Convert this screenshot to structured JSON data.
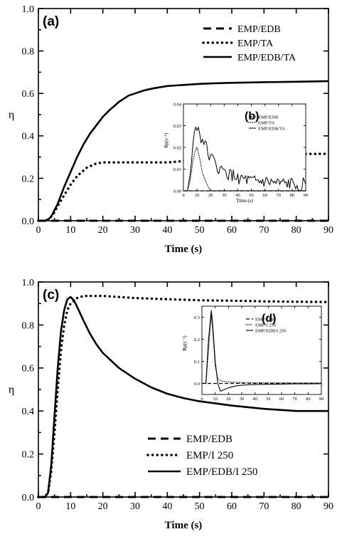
{
  "chart_data": [
    {
      "panel_label": "(a)",
      "type": "line",
      "xlabel": "Time (s)",
      "ylabel": "η",
      "xlim": [
        0,
        90
      ],
      "ylim": [
        0,
        1.0
      ],
      "xticks": [
        "0",
        "10",
        "20",
        "30",
        "40",
        "50",
        "60",
        "70",
        "80",
        "90"
      ],
      "yticks": [
        "0.0",
        "0.2",
        "0.4",
        "0.6",
        "0.8",
        "1.0"
      ],
      "legend_position": "top-right",
      "series": [
        {
          "name": "EMP/EDB",
          "style": "dashed-thick",
          "points": [
            [
              0,
              0
            ],
            [
              90,
              0
            ]
          ]
        },
        {
          "name": "EMP/TA",
          "style": "dotted-thick",
          "points": [
            [
              0,
              0
            ],
            [
              2,
              0
            ],
            [
              3.5,
              0.01
            ],
            [
              5,
              0.04
            ],
            [
              6,
              0.07
            ],
            [
              8,
              0.12
            ],
            [
              10,
              0.17
            ],
            [
              12,
              0.21
            ],
            [
              15,
              0.25
            ],
            [
              18,
              0.27
            ],
            [
              20,
              0.275
            ],
            [
              25,
              0.275
            ],
            [
              30,
              0.275
            ],
            [
              35,
              0.275
            ],
            [
              40,
              0.275
            ],
            [
              44,
              0.28
            ],
            [
              48,
              0.29
            ],
            [
              52,
              0.3
            ],
            [
              55,
              0.305
            ],
            [
              60,
              0.31
            ],
            [
              70,
              0.315
            ],
            [
              80,
              0.315
            ],
            [
              90,
              0.315
            ]
          ]
        },
        {
          "name": "EMP/EDB/TA",
          "style": "solid-thick",
          "points": [
            [
              0,
              0
            ],
            [
              2,
              0
            ],
            [
              3,
              0.005
            ],
            [
              4,
              0.02
            ],
            [
              5,
              0.05
            ],
            [
              6,
              0.08
            ],
            [
              7,
              0.12
            ],
            [
              8,
              0.16
            ],
            [
              10,
              0.23
            ],
            [
              12,
              0.3
            ],
            [
              14,
              0.36
            ],
            [
              16,
              0.41
            ],
            [
              18,
              0.45
            ],
            [
              20,
              0.49
            ],
            [
              22,
              0.52
            ],
            [
              25,
              0.56
            ],
            [
              28,
              0.59
            ],
            [
              30,
              0.6
            ],
            [
              33,
              0.615
            ],
            [
              36,
              0.625
            ],
            [
              40,
              0.635
            ],
            [
              45,
              0.64
            ],
            [
              50,
              0.645
            ],
            [
              55,
              0.648
            ],
            [
              60,
              0.65
            ],
            [
              70,
              0.653
            ],
            [
              80,
              0.655
            ],
            [
              90,
              0.658
            ]
          ]
        }
      ],
      "inset": {
        "panel_label": "(b)",
        "xlabel": "Time (s)",
        "ylabel": "Rp(s⁻¹)",
        "xlim": [
          0,
          90
        ],
        "ylim": [
          0,
          0.04
        ],
        "xticks": [
          "0",
          "10",
          "20",
          "30",
          "40",
          "50",
          "60",
          "70",
          "80",
          "90"
        ],
        "yticks": [
          "0.00",
          "0.01",
          "0.02",
          "0.03",
          "0.04"
        ],
        "legend": [
          "EMP/EDB",
          "EMP/TA",
          "EMP/EDB/TA"
        ],
        "series": [
          {
            "name": "EMP/EDB",
            "style": "dashed",
            "points": [
              [
                0,
                0
              ],
              [
                90,
                0
              ]
            ]
          },
          {
            "name": "EMP/TA",
            "style": "dotted",
            "points": [
              [
                0,
                0
              ],
              [
                3,
                0
              ],
              [
                5,
                0.005
              ],
              [
                7,
                0.014
              ],
              [
                9,
                0.019
              ],
              [
                10,
                0.02
              ],
              [
                12,
                0.015
              ],
              [
                14,
                0.008
              ],
              [
                16,
                0.005
              ],
              [
                18,
                0.002
              ],
              [
                20,
                0
              ],
              [
                90,
                0
              ]
            ]
          },
          {
            "name": "EMP/EDB/TA",
            "style": "solid-noisy",
            "points": [
              [
                0,
                0
              ],
              [
                3,
                0
              ],
              [
                5,
                0.008
              ],
              [
                7,
                0.02
              ],
              [
                8,
                0.028
              ],
              [
                10,
                0.03
              ],
              [
                12,
                0.026
              ],
              [
                14,
                0.024
              ],
              [
                16,
                0.021
              ],
              [
                18,
                0.018
              ],
              [
                20,
                0.016
              ],
              [
                22,
                0.013
              ],
              [
                25,
                0.011
              ],
              [
                28,
                0.009
              ],
              [
                32,
                0.008
              ],
              [
                35,
                0.007
              ],
              [
                40,
                0.006
              ],
              [
                45,
                0.005
              ],
              [
                50,
                0.004
              ],
              [
                55,
                0.004
              ],
              [
                60,
                0.004
              ],
              [
                70,
                0.003
              ],
              [
                80,
                0.003
              ],
              [
                90,
                0.003
              ]
            ]
          }
        ]
      }
    },
    {
      "panel_label": "(c)",
      "type": "line",
      "xlabel": "Time (s)",
      "ylabel": "η",
      "xlim": [
        0,
        90
      ],
      "ylim": [
        0,
        1.0
      ],
      "xticks": [
        "0",
        "10",
        "20",
        "30",
        "40",
        "50",
        "60",
        "70",
        "80",
        "90"
      ],
      "yticks": [
        "0.0",
        "0.2",
        "0.4",
        "0.6",
        "0.8",
        "1.0"
      ],
      "legend_position": "bottom-center",
      "series": [
        {
          "name": "EMP/EDB",
          "style": "dashed-thick",
          "points": [
            [
              0,
              0
            ],
            [
              90,
              0
            ]
          ]
        },
        {
          "name": "EMP/I 250",
          "style": "dotted-thick",
          "points": [
            [
              0,
              0
            ],
            [
              2,
              0
            ],
            [
              3,
              0.02
            ],
            [
              4,
              0.12
            ],
            [
              5,
              0.3
            ],
            [
              6,
              0.5
            ],
            [
              7,
              0.68
            ],
            [
              8,
              0.8
            ],
            [
              9,
              0.87
            ],
            [
              10,
              0.9
            ],
            [
              12,
              0.925
            ],
            [
              14,
              0.935
            ],
            [
              20,
              0.935
            ],
            [
              30,
              0.925
            ],
            [
              40,
              0.92
            ],
            [
              50,
              0.915
            ],
            [
              60,
              0.913
            ],
            [
              70,
              0.91
            ],
            [
              80,
              0.908
            ],
            [
              90,
              0.907
            ]
          ]
        },
        {
          "name": "EMP/EDB/I 250",
          "style": "solid-thick",
          "points": [
            [
              0,
              0
            ],
            [
              2,
              0
            ],
            [
              3,
              0.02
            ],
            [
              4,
              0.15
            ],
            [
              5,
              0.38
            ],
            [
              6,
              0.6
            ],
            [
              7,
              0.77
            ],
            [
              8,
              0.87
            ],
            [
              9,
              0.92
            ],
            [
              10,
              0.93
            ],
            [
              11,
              0.915
            ],
            [
              12,
              0.885
            ],
            [
              14,
              0.82
            ],
            [
              16,
              0.76
            ],
            [
              18,
              0.71
            ],
            [
              20,
              0.67
            ],
            [
              25,
              0.6
            ],
            [
              30,
              0.55
            ],
            [
              35,
              0.51
            ],
            [
              40,
              0.48
            ],
            [
              45,
              0.46
            ],
            [
              50,
              0.445
            ],
            [
              55,
              0.435
            ],
            [
              60,
              0.425
            ],
            [
              70,
              0.41
            ],
            [
              80,
              0.4
            ],
            [
              90,
              0.4
            ]
          ]
        }
      ],
      "inset": {
        "panel_label": "(d)",
        "xlabel": "",
        "ylabel": "Rp(s⁻¹)",
        "xlim": [
          0,
          90
        ],
        "ylim": [
          -0.05,
          0.35
        ],
        "xticks": [
          "0",
          "10",
          "20",
          "30",
          "40",
          "50",
          "60",
          "70",
          "80",
          "90"
        ],
        "yticks": [
          "0.0",
          "0.1",
          "0.2",
          "0.3"
        ],
        "legend": [
          "EMP/EDB",
          "EMP/I 250",
          "EMP/EDB/I 250"
        ],
        "series": [
          {
            "name": "EMP/EDB",
            "style": "dashed",
            "points": [
              [
                0,
                0
              ],
              [
                90,
                0
              ]
            ]
          },
          {
            "name": "EMP/I 250",
            "style": "dotted",
            "points": [
              [
                0,
                0
              ],
              [
                3,
                0
              ],
              [
                5,
                0.15
              ],
              [
                7,
                0.31
              ],
              [
                8,
                0.25
              ],
              [
                10,
                0.08
              ],
              [
                12,
                0.02
              ],
              [
                15,
                0.01
              ],
              [
                25,
                0.005
              ],
              [
                40,
                0.003
              ],
              [
                90,
                0.002
              ]
            ]
          },
          {
            "name": "EMP/EDB/I 250",
            "style": "solid",
            "points": [
              [
                0,
                0
              ],
              [
                3,
                0
              ],
              [
                5,
                0.2
              ],
              [
                7,
                0.33
              ],
              [
                8,
                0.28
              ],
              [
                10,
                0.1
              ],
              [
                12,
                0
              ],
              [
                14,
                -0.035
              ],
              [
                16,
                -0.03
              ],
              [
                20,
                -0.02
              ],
              [
                25,
                -0.012
              ],
              [
                30,
                -0.008
              ],
              [
                40,
                -0.005
              ],
              [
                50,
                -0.004
              ],
              [
                60,
                -0.003
              ],
              [
                70,
                -0.002
              ],
              [
                80,
                -0.002
              ],
              [
                90,
                -0.001
              ]
            ]
          }
        ]
      }
    }
  ]
}
